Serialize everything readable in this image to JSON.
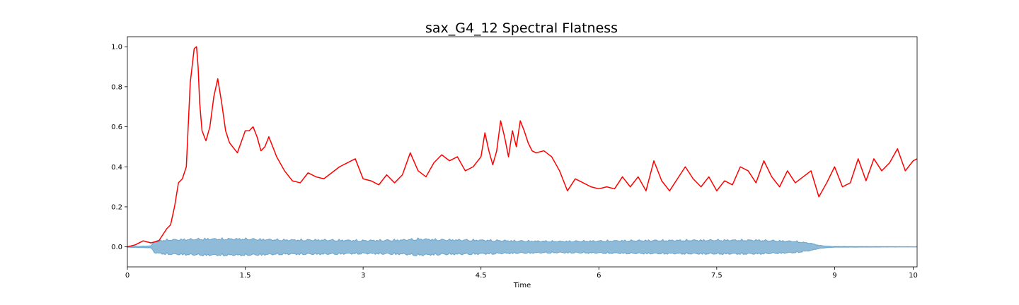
{
  "chart_data": {
    "type": "line",
    "title": "sax_G4_12 Spectral Flatness",
    "xlabel": "Time",
    "ylabel": "",
    "xlim": [
      0,
      10.05
    ],
    "ylim": [
      -0.1,
      1.05
    ],
    "x_ticks": [
      0,
      1.5,
      3,
      4.5,
      6,
      7.5,
      9,
      10
    ],
    "x_tick_labels": [
      "0",
      "1.5",
      "3",
      "4.5",
      "6",
      "7.5",
      "9",
      "10"
    ],
    "y_ticks": [
      0.0,
      0.2,
      0.4,
      0.6,
      0.8,
      1.0
    ],
    "y_tick_labels": [
      "0.0",
      "0.2",
      "0.4",
      "0.6",
      "0.8",
      "1.0"
    ],
    "grid": false,
    "colors": {
      "flatness": "#ff0000",
      "waveform": "#1f77b4"
    },
    "series": [
      {
        "kind": "line",
        "x": [
          0.0,
          0.1,
          0.2,
          0.3,
          0.4,
          0.45,
          0.5,
          0.55,
          0.6,
          0.65,
          0.7,
          0.75,
          0.8,
          0.85,
          0.88,
          0.9,
          0.92,
          0.95,
          1.0,
          1.05,
          1.1,
          1.15,
          1.2,
          1.25,
          1.3,
          1.4,
          1.5,
          1.55,
          1.6,
          1.65,
          1.7,
          1.75,
          1.8,
          1.9,
          2.0,
          2.1,
          2.2,
          2.3,
          2.4,
          2.5,
          2.6,
          2.7,
          2.8,
          2.9,
          3.0,
          3.1,
          3.2,
          3.3,
          3.4,
          3.5,
          3.6,
          3.7,
          3.8,
          3.9,
          4.0,
          4.1,
          4.2,
          4.3,
          4.4,
          4.5,
          4.55,
          4.6,
          4.65,
          4.7,
          4.75,
          4.8,
          4.85,
          4.9,
          4.95,
          5.0,
          5.05,
          5.1,
          5.15,
          5.2,
          5.3,
          5.4,
          5.5,
          5.6,
          5.7,
          5.8,
          5.9,
          6.0,
          6.1,
          6.2,
          6.3,
          6.4,
          6.5,
          6.6,
          6.7,
          6.8,
          6.9,
          7.0,
          7.1,
          7.2,
          7.3,
          7.4,
          7.5,
          7.6,
          7.7,
          7.8,
          7.9,
          8.0,
          8.1,
          8.2,
          8.3,
          8.4,
          8.5,
          8.6,
          8.7,
          8.8,
          8.9,
          9.0,
          9.1,
          9.2,
          9.3,
          9.4,
          9.5,
          9.6,
          9.7,
          9.8,
          9.9,
          10.0,
          10.05
        ],
        "y": [
          0.0,
          0.01,
          0.03,
          0.02,
          0.03,
          0.06,
          0.09,
          0.11,
          0.2,
          0.32,
          0.34,
          0.4,
          0.82,
          0.99,
          1.0,
          0.9,
          0.72,
          0.58,
          0.53,
          0.6,
          0.75,
          0.84,
          0.72,
          0.58,
          0.52,
          0.47,
          0.58,
          0.58,
          0.6,
          0.55,
          0.48,
          0.5,
          0.55,
          0.45,
          0.38,
          0.33,
          0.32,
          0.37,
          0.35,
          0.34,
          0.37,
          0.4,
          0.42,
          0.44,
          0.34,
          0.33,
          0.31,
          0.36,
          0.32,
          0.36,
          0.47,
          0.38,
          0.35,
          0.42,
          0.46,
          0.43,
          0.45,
          0.38,
          0.4,
          0.45,
          0.57,
          0.48,
          0.41,
          0.48,
          0.63,
          0.55,
          0.45,
          0.58,
          0.5,
          0.63,
          0.58,
          0.52,
          0.48,
          0.47,
          0.48,
          0.45,
          0.38,
          0.28,
          0.34,
          0.32,
          0.3,
          0.29,
          0.3,
          0.29,
          0.35,
          0.3,
          0.35,
          0.28,
          0.43,
          0.33,
          0.28,
          0.34,
          0.4,
          0.34,
          0.3,
          0.35,
          0.28,
          0.33,
          0.31,
          0.4,
          0.38,
          0.32,
          0.43,
          0.35,
          0.3,
          0.38,
          0.32,
          0.35,
          0.38,
          0.25,
          0.32,
          0.4,
          0.3,
          0.32,
          0.44,
          0.33,
          0.44,
          0.38,
          0.42,
          0.49,
          0.38,
          0.43,
          0.44
        ],
        "name": ""
      },
      {
        "kind": "waveform",
        "x": [
          0.0,
          0.3,
          0.35,
          0.5,
          1.0,
          1.5,
          2.0,
          2.5,
          3.0,
          3.5,
          3.7,
          4.0,
          4.5,
          5.0,
          5.5,
          6.0,
          6.5,
          7.0,
          7.5,
          8.0,
          8.5,
          8.7,
          8.8,
          8.9,
          9.0,
          10.05
        ],
        "amplitude": [
          0.002,
          0.005,
          0.03,
          0.035,
          0.04,
          0.04,
          0.035,
          0.035,
          0.032,
          0.035,
          0.04,
          0.036,
          0.034,
          0.03,
          0.028,
          0.03,
          0.032,
          0.033,
          0.034,
          0.034,
          0.028,
          0.018,
          0.008,
          0.004,
          0.002,
          0.001
        ],
        "name": ""
      }
    ]
  }
}
